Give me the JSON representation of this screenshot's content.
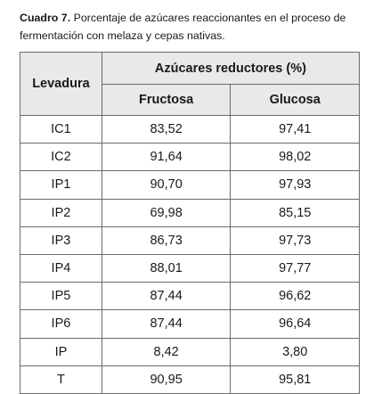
{
  "caption": {
    "label": "Cuadro 7.",
    "text": " Porcentaje de azúcares reaccionantes en el proceso de fermentación con melaza y cepas nativas."
  },
  "table": {
    "header_levadura": "Levadura",
    "header_group": "Azúcares reductores (%)",
    "sub_headers": [
      "Fructosa",
      "Glucosa"
    ],
    "rows": [
      {
        "levadura": "IC1",
        "fructosa": "83,52",
        "glucosa": "97,41"
      },
      {
        "levadura": "IC2",
        "fructosa": "91,64",
        "glucosa": "98,02"
      },
      {
        "levadura": "IP1",
        "fructosa": "90,70",
        "glucosa": "97,93"
      },
      {
        "levadura": "IP2",
        "fructosa": "69,98",
        "glucosa": "85,15"
      },
      {
        "levadura": "IP3",
        "fructosa": "86,73",
        "glucosa": "97,73"
      },
      {
        "levadura": "IP4",
        "fructosa": "88,01",
        "glucosa": "97,77"
      },
      {
        "levadura": "IP5",
        "fructosa": "87,44",
        "glucosa": "96,62"
      },
      {
        "levadura": "IP6",
        "fructosa": "87,44",
        "glucosa": "96,64"
      },
      {
        "levadura": "IP",
        "fructosa": "8,42",
        "glucosa": "3,80"
      },
      {
        "levadura": "T",
        "fructosa": "90,95",
        "glucosa": "95,81"
      }
    ]
  }
}
